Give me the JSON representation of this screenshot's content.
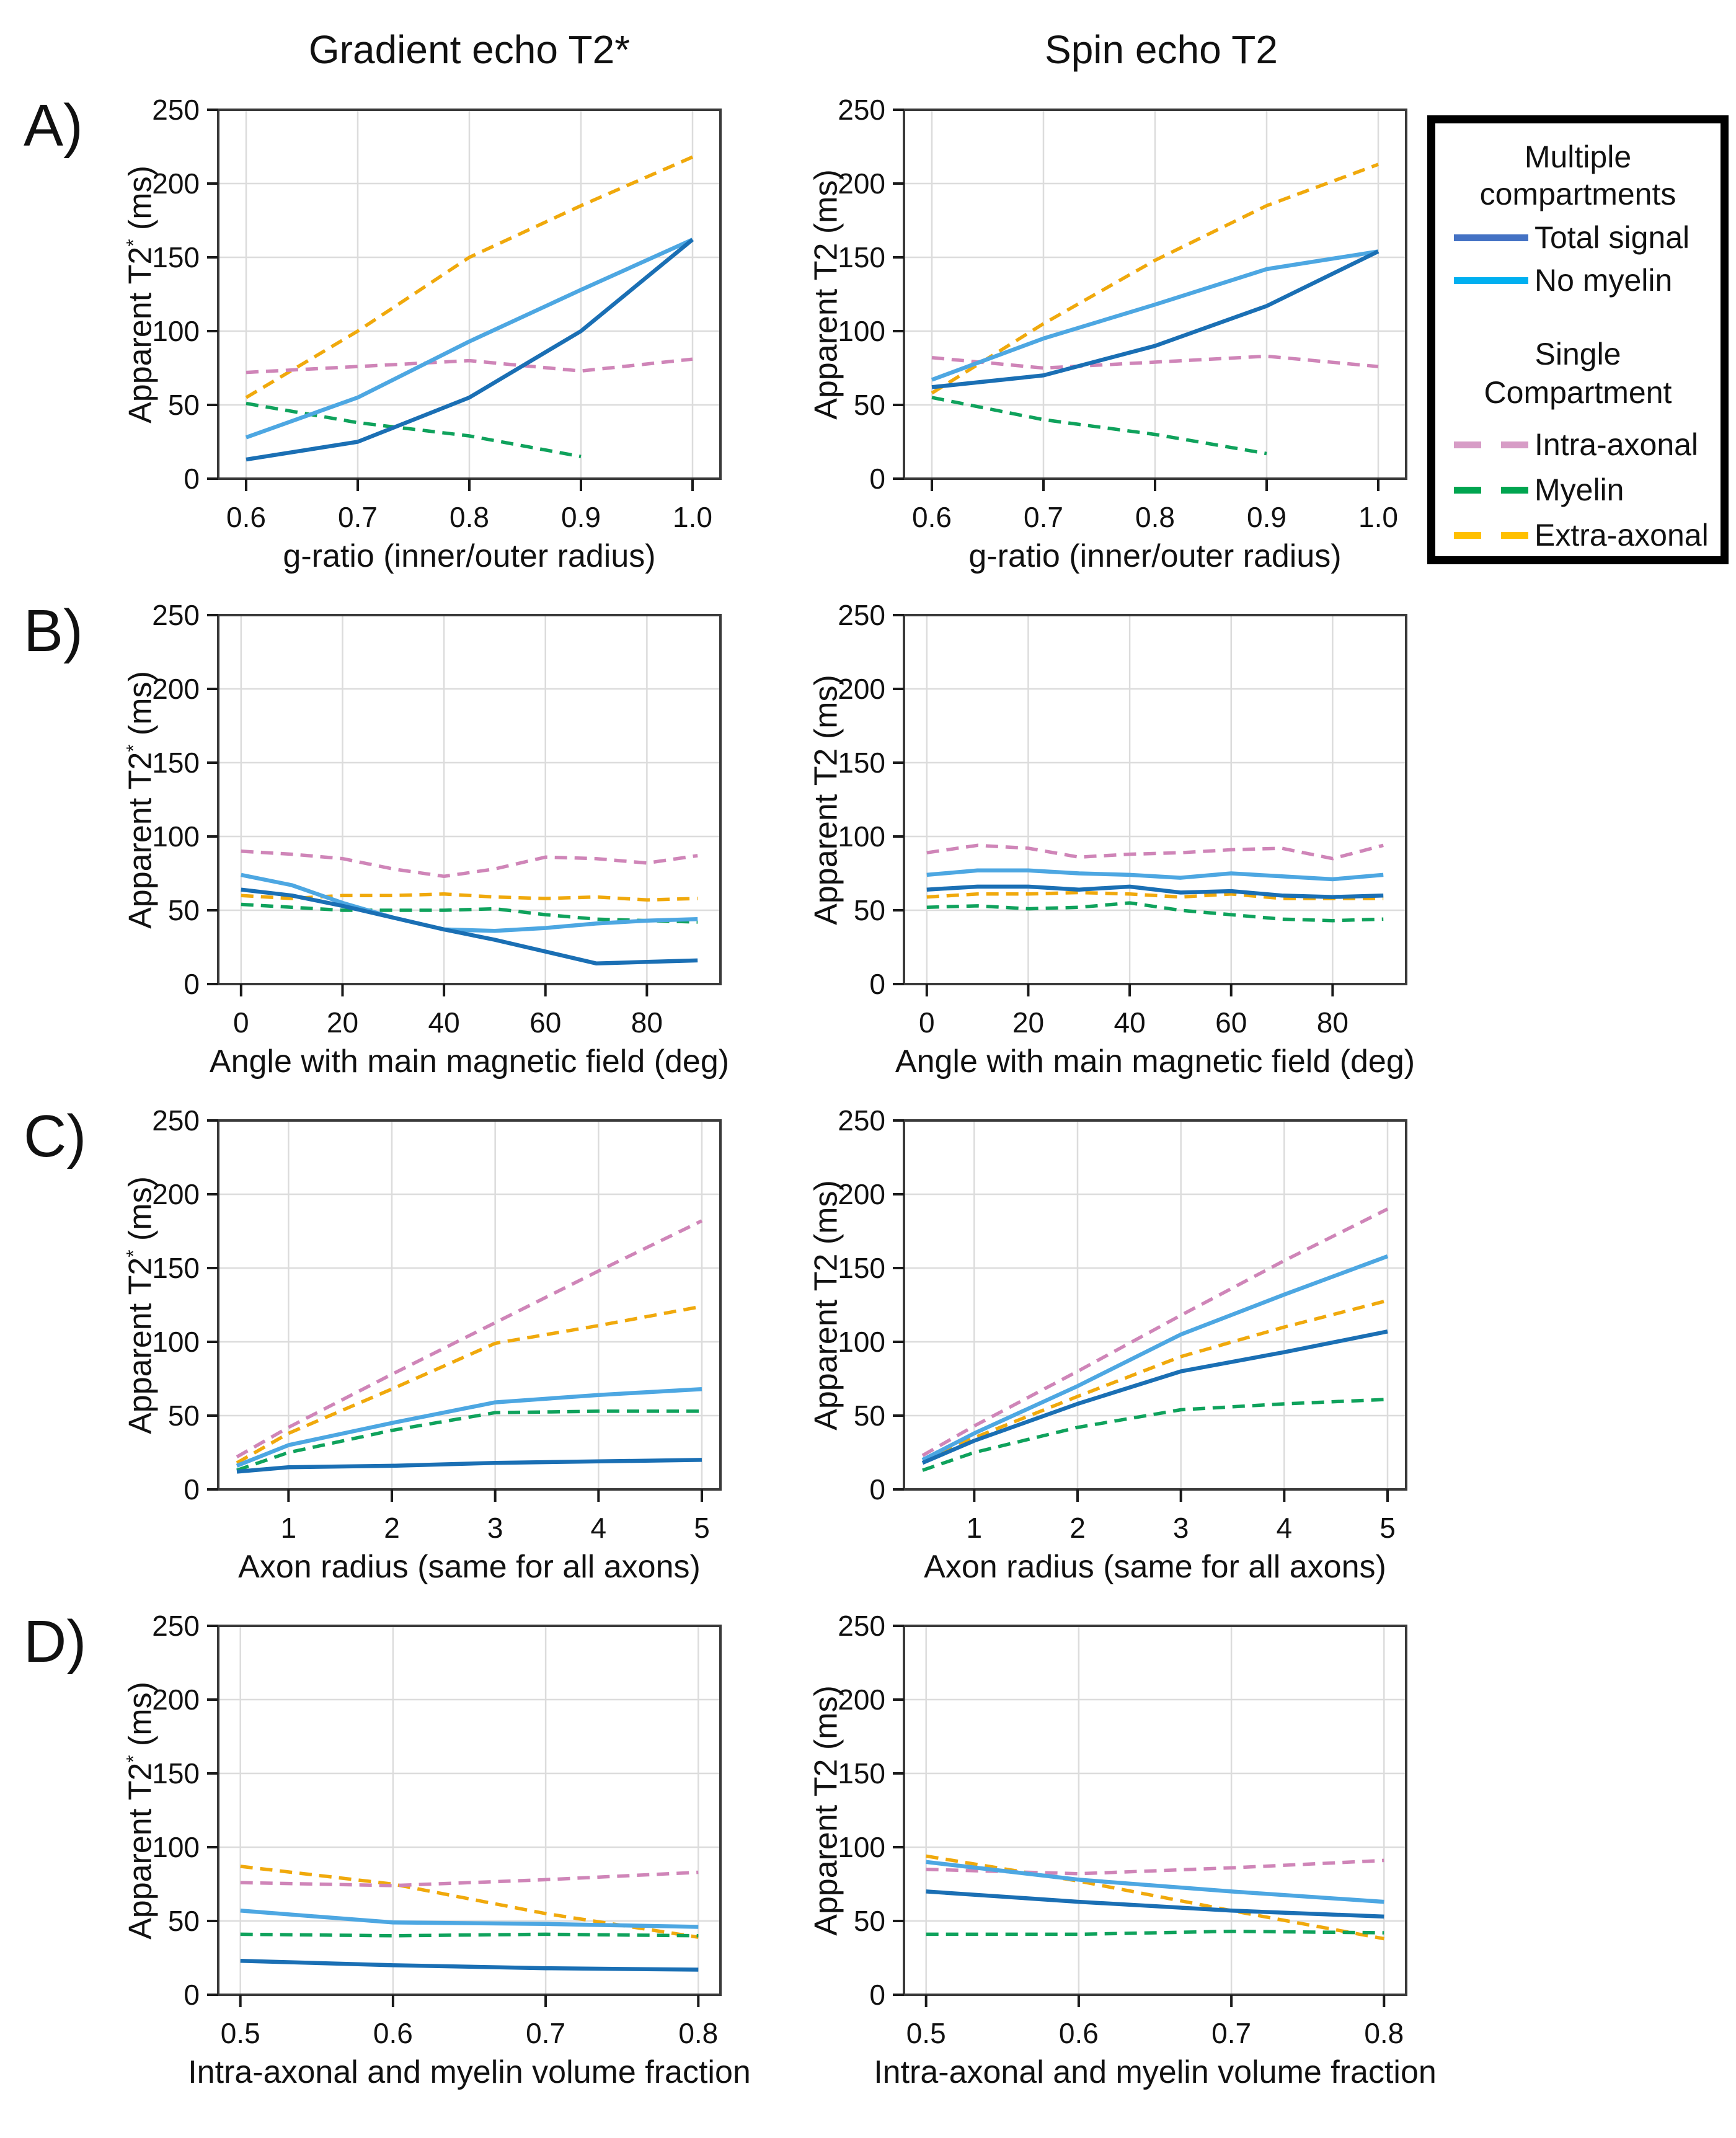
{
  "figure": {
    "column_titles": [
      "Gradient echo T2*",
      "Spin echo T2"
    ],
    "panel_labels": [
      "A)",
      "B)",
      "C)",
      "D)"
    ]
  },
  "legend": {
    "group1_heading_line1": "Multiple",
    "group1_heading_line2": "compartments",
    "group1_items": [
      {
        "label": "Total signal",
        "color": "#4472c4",
        "dash": false
      },
      {
        "label": "No myelin",
        "color": "#00b0f0",
        "dash": false
      }
    ],
    "group2_heading_line1": "Single",
    "group2_heading_line2": "Compartment",
    "group2_items": [
      {
        "label": "Intra-axonal",
        "color": "#d79cc6",
        "dash": true
      },
      {
        "label": "Myelin",
        "color": "#00a550",
        "dash": true
      },
      {
        "label": "Extra-axonal",
        "color": "#ffc000",
        "dash": true
      }
    ]
  },
  "series_styles": {
    "total": {
      "name": "Total signal",
      "color": "#1a6fb4",
      "dash": false
    },
    "no_myelin": {
      "name": "No myelin",
      "color": "#4da7e2",
      "dash": false
    },
    "intra": {
      "name": "Intra-axonal",
      "color": "#cf85b8",
      "dash": true
    },
    "myelin": {
      "name": "Myelin",
      "color": "#0fa25c",
      "dash": true
    },
    "extra": {
      "name": "Extra-axonal",
      "color": "#f0a90c",
      "dash": true
    }
  },
  "draw_order": [
    "extra",
    "intra",
    "myelin",
    "no_myelin",
    "total"
  ],
  "yaxis": {
    "ylim": [
      0,
      250
    ],
    "yticks": [
      0,
      50,
      100,
      150,
      200,
      250
    ]
  },
  "chart_data": [
    {
      "id": "A-gradient-echo",
      "type": "line",
      "xlabel": "g-ratio (inner/outer radius)",
      "ylabel": {
        "pre": "Apparent T2",
        "sup": "*",
        "post": " (ms)"
      },
      "xlim": [
        0.575,
        1.025
      ],
      "xticks": [
        {
          "v": 0.6,
          "label": "0.6"
        },
        {
          "v": 0.7,
          "label": "0.7"
        },
        {
          "v": 0.8,
          "label": "0.8"
        },
        {
          "v": 0.9,
          "label": "0.9"
        },
        {
          "v": 1.0,
          "label": "1.0"
        }
      ],
      "x": [
        0.6,
        0.7,
        0.8,
        0.9,
        1.0
      ],
      "series": {
        "total": [
          13,
          25,
          55,
          100,
          162
        ],
        "no_myelin": [
          28,
          55,
          93,
          128,
          162
        ],
        "intra": [
          72,
          76,
          80,
          73,
          81
        ],
        "myelin": [
          51,
          38,
          29,
          15,
          null
        ],
        "extra": [
          55,
          100,
          150,
          185,
          218
        ]
      }
    },
    {
      "id": "A-spin-echo",
      "type": "line",
      "xlabel": "g-ratio (inner/outer radius)",
      "ylabel": {
        "pre": "Apparent T2",
        "sup": "",
        "post": " (ms)"
      },
      "xlim": [
        0.575,
        1.025
      ],
      "xticks": [
        {
          "v": 0.6,
          "label": "0.6"
        },
        {
          "v": 0.7,
          "label": "0.7"
        },
        {
          "v": 0.8,
          "label": "0.8"
        },
        {
          "v": 0.9,
          "label": "0.9"
        },
        {
          "v": 1.0,
          "label": "1.0"
        }
      ],
      "x": [
        0.6,
        0.7,
        0.8,
        0.9,
        1.0
      ],
      "series": {
        "total": [
          62,
          70,
          90,
          117,
          154
        ],
        "no_myelin": [
          67,
          95,
          118,
          142,
          154
        ],
        "intra": [
          82,
          75,
          79,
          83,
          76
        ],
        "myelin": [
          55,
          40,
          30,
          17,
          null
        ],
        "extra": [
          58,
          105,
          148,
          185,
          213
        ]
      }
    },
    {
      "id": "B-gradient-echo",
      "type": "line",
      "xlabel": "Angle with main magnetic field (deg)",
      "ylabel": {
        "pre": "Apparent T2",
        "sup": "*",
        "post": " (ms)"
      },
      "xlim": [
        -4.5,
        94.5
      ],
      "xticks": [
        {
          "v": 0,
          "label": "0"
        },
        {
          "v": 20,
          "label": "20"
        },
        {
          "v": 40,
          "label": "40"
        },
        {
          "v": 60,
          "label": "60"
        },
        {
          "v": 80,
          "label": "80"
        }
      ],
      "x": [
        0,
        10,
        20,
        30,
        40,
        50,
        60,
        70,
        80,
        90
      ],
      "series": {
        "total": [
          64,
          60,
          53,
          45,
          37,
          30,
          22,
          14,
          15,
          16
        ],
        "no_myelin": [
          74,
          67,
          55,
          45,
          37,
          36,
          38,
          41,
          43,
          44
        ],
        "intra": [
          90,
          88,
          85,
          78,
          73,
          78,
          86,
          85,
          82,
          87
        ],
        "myelin": [
          54,
          52,
          50,
          50,
          50,
          51,
          47,
          44,
          43,
          42
        ],
        "extra": [
          60,
          58,
          60,
          60,
          61,
          59,
          58,
          59,
          57,
          58
        ]
      }
    },
    {
      "id": "B-spin-echo",
      "type": "line",
      "xlabel": "Angle with main magnetic field (deg)",
      "ylabel": {
        "pre": "Apparent T2",
        "sup": "",
        "post": " (ms)"
      },
      "xlim": [
        -4.5,
        94.5
      ],
      "xticks": [
        {
          "v": 0,
          "label": "0"
        },
        {
          "v": 20,
          "label": "20"
        },
        {
          "v": 40,
          "label": "40"
        },
        {
          "v": 60,
          "label": "60"
        },
        {
          "v": 80,
          "label": "80"
        }
      ],
      "x": [
        0,
        10,
        20,
        30,
        40,
        50,
        60,
        70,
        80,
        90
      ],
      "series": {
        "total": [
          64,
          66,
          66,
          64,
          66,
          62,
          63,
          60,
          59,
          60
        ],
        "no_myelin": [
          74,
          77,
          77,
          75,
          74,
          72,
          75,
          73,
          71,
          74
        ],
        "intra": [
          89,
          94,
          92,
          86,
          88,
          89,
          91,
          92,
          85,
          94
        ],
        "myelin": [
          52,
          53,
          51,
          52,
          55,
          50,
          47,
          44,
          43,
          44
        ],
        "extra": [
          59,
          61,
          61,
          62,
          61,
          59,
          61,
          58,
          58,
          58
        ]
      }
    },
    {
      "id": "C-gradient-echo",
      "type": "line",
      "xlabel": "Axon radius (same for all axons)",
      "ylabel": {
        "pre": "Apparent T2",
        "sup": "*",
        "post": " (ms)"
      },
      "xlim": [
        0.32,
        5.18
      ],
      "xticks": [
        {
          "v": 1,
          "label": "1"
        },
        {
          "v": 2,
          "label": "2"
        },
        {
          "v": 3,
          "label": "3"
        },
        {
          "v": 4,
          "label": "4"
        },
        {
          "v": 5,
          "label": "5"
        }
      ],
      "x": [
        0.5,
        1,
        2,
        3,
        4,
        5
      ],
      "series": {
        "total": [
          12,
          15,
          16,
          18,
          19,
          20
        ],
        "no_myelin": [
          16,
          30,
          45,
          59,
          64,
          68
        ],
        "intra": [
          22,
          42,
          78,
          113,
          148,
          182
        ],
        "myelin": [
          13,
          25,
          40,
          52,
          53,
          53
        ],
        "extra": [
          18,
          38,
          68,
          99,
          111,
          124
        ]
      }
    },
    {
      "id": "C-spin-echo",
      "type": "line",
      "xlabel": "Axon radius (same for all axons)",
      "ylabel": {
        "pre": "Apparent T2",
        "sup": "",
        "post": " (ms)"
      },
      "xlim": [
        0.32,
        5.18
      ],
      "xticks": [
        {
          "v": 1,
          "label": "1"
        },
        {
          "v": 2,
          "label": "2"
        },
        {
          "v": 3,
          "label": "3"
        },
        {
          "v": 4,
          "label": "4"
        },
        {
          "v": 5,
          "label": "5"
        }
      ],
      "x": [
        0.5,
        1,
        2,
        3,
        4,
        5
      ],
      "series": {
        "total": [
          18,
          33,
          58,
          80,
          93,
          107
        ],
        "no_myelin": [
          20,
          38,
          70,
          105,
          132,
          158
        ],
        "intra": [
          23,
          43,
          80,
          118,
          155,
          190
        ],
        "myelin": [
          13,
          25,
          42,
          54,
          58,
          61
        ],
        "extra": [
          20,
          35,
          63,
          90,
          110,
          128
        ]
      }
    },
    {
      "id": "D-gradient-echo",
      "type": "line",
      "xlabel": "Intra-axonal and myelin volume fraction",
      "ylabel": {
        "pre": "Apparent T2",
        "sup": "*",
        "post": " (ms)"
      },
      "xlim": [
        0.4855,
        0.8145
      ],
      "xticks": [
        {
          "v": 0.5,
          "label": "0.5"
        },
        {
          "v": 0.6,
          "label": "0.6"
        },
        {
          "v": 0.7,
          "label": "0.7"
        },
        {
          "v": 0.8,
          "label": "0.8"
        }
      ],
      "x": [
        0.5,
        0.6,
        0.7,
        0.8
      ],
      "series": {
        "total": [
          23,
          20,
          18,
          17
        ],
        "no_myelin": [
          57,
          49,
          48,
          46
        ],
        "intra": [
          76,
          74,
          78,
          83
        ],
        "myelin": [
          41,
          40,
          41,
          40
        ],
        "extra": [
          87,
          75,
          55,
          39
        ]
      }
    },
    {
      "id": "D-spin-echo",
      "type": "line",
      "xlabel": "Intra-axonal and myelin volume fraction",
      "ylabel": {
        "pre": "Apparent T2",
        "sup": "",
        "post": " (ms)"
      },
      "xlim": [
        0.4855,
        0.8145
      ],
      "xticks": [
        {
          "v": 0.5,
          "label": "0.5"
        },
        {
          "v": 0.6,
          "label": "0.6"
        },
        {
          "v": 0.7,
          "label": "0.7"
        },
        {
          "v": 0.8,
          "label": "0.8"
        }
      ],
      "x": [
        0.5,
        0.6,
        0.7,
        0.8
      ],
      "series": {
        "total": [
          70,
          63,
          57,
          53
        ],
        "no_myelin": [
          90,
          78,
          70,
          63
        ],
        "intra": [
          85,
          82,
          86,
          91
        ],
        "myelin": [
          41,
          41,
          43,
          42
        ],
        "extra": [
          94,
          77,
          57,
          38
        ]
      }
    }
  ]
}
